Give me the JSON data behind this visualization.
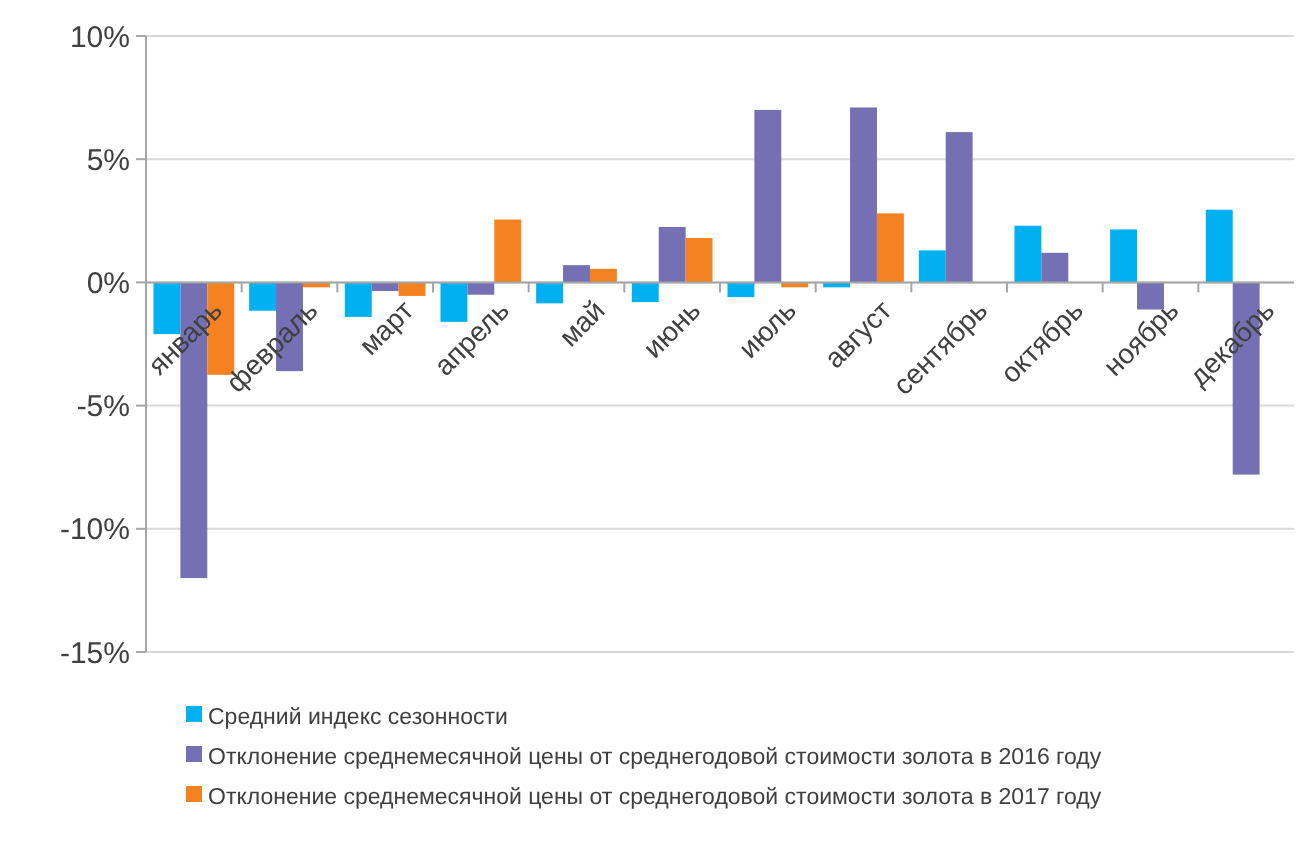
{
  "chart_data": {
    "type": "bar",
    "categories": [
      "январь",
      "февраль",
      "март",
      "апрель",
      "май",
      "июнь",
      "июль",
      "август",
      "сентябрь",
      "октябрь",
      "ноябрь",
      "декабрь"
    ],
    "series": [
      {
        "name": "Средний индекс сезонности",
        "color": "#00b0f0",
        "values": [
          -2.1,
          -1.15,
          -1.4,
          -1.6,
          -0.85,
          -0.8,
          -0.6,
          -0.2,
          1.3,
          2.3,
          2.15,
          2.95
        ]
      },
      {
        "name": "Отклонение среднемесячной цены от среднегодовой стоимости золота в 2016 году",
        "color": "#7470b3",
        "values": [
          -12.0,
          -3.6,
          -0.35,
          -0.5,
          0.7,
          2.25,
          7.0,
          7.1,
          6.1,
          1.2,
          -1.1,
          -7.8
        ]
      },
      {
        "name": "Отклонение среднемесячной цены от среднегодовой стоимости золота в 2017 году",
        "color": "#f58220",
        "values": [
          -3.75,
          -0.2,
          -0.55,
          2.55,
          0.55,
          1.8,
          -0.2,
          2.8,
          null,
          null,
          null,
          null
        ]
      }
    ],
    "ylim": [
      -15,
      10
    ],
    "yticks": [
      {
        "value": -15,
        "label": "-15%"
      },
      {
        "value": -10,
        "label": "-10%"
      },
      {
        "value": -5,
        "label": "-5%"
      },
      {
        "value": 0,
        "label": "0%"
      },
      {
        "value": 5,
        "label": "5%"
      },
      {
        "value": 10,
        "label": "10%"
      }
    ],
    "grid": "y",
    "legend": "bottom"
  }
}
